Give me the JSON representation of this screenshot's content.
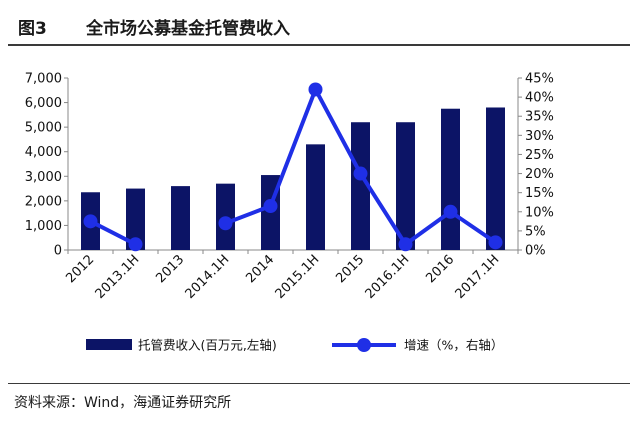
{
  "header": {
    "label": "图3",
    "title": "全市场公募基金托管费收入"
  },
  "source": "资料来源：Wind，海通证券研究所",
  "colors": {
    "bar": "#0c1466",
    "line": "#1f2fe6"
  },
  "chart_data": {
    "type": "bar",
    "categories": [
      "2012",
      "2013.1H",
      "2013",
      "2014.1H",
      "2014",
      "2015.1H",
      "2015",
      "2016.1H",
      "2016",
      "2017.1H"
    ],
    "series": [
      {
        "name": "托管费收入(百万元,左轴)",
        "type": "bar",
        "axis": "left",
        "values": [
          2350,
          2500,
          2600,
          2700,
          3050,
          4300,
          5200,
          5200,
          5750,
          5800
        ]
      },
      {
        "name": "增速（%，右轴）",
        "type": "line",
        "axis": "right",
        "values": [
          7.5,
          1.5,
          null,
          7,
          11.5,
          42,
          20,
          1.5,
          10,
          2
        ]
      }
    ],
    "y_left": {
      "min": 0,
      "max": 7000,
      "ticks": [
        "0",
        "1,000",
        "2,000",
        "3,000",
        "4,000",
        "5,000",
        "6,000",
        "7,000"
      ]
    },
    "y_right": {
      "min": 0,
      "max": 45,
      "ticks": [
        "0%",
        "5%",
        "10%",
        "15%",
        "20%",
        "25%",
        "30%",
        "35%",
        "40%",
        "45%"
      ]
    },
    "legend_position": "bottom"
  }
}
